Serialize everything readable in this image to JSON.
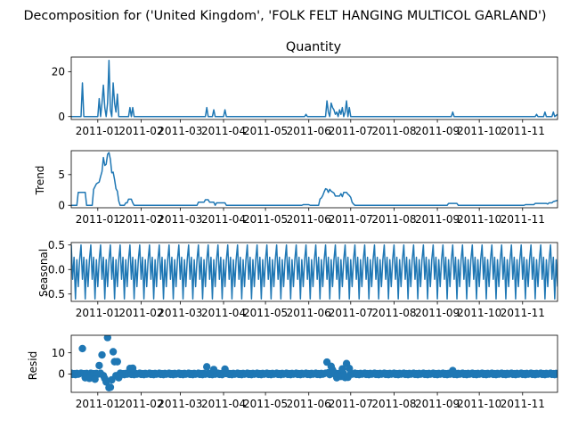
{
  "figure": {
    "suptitle": "Decomposition for ('United Kingdom', 'FOLK FELT HANGING MULTICOL GARLAND')"
  },
  "x_ticks": [
    "2011-01",
    "2011-02",
    "2011-03",
    "2011-04",
    "2011-05",
    "2011-06",
    "2011-07",
    "2011-08",
    "2011-09",
    "2011-10",
    "2011-11"
  ],
  "colors": {
    "series": "#1f77b4",
    "axis": "#000000",
    "background": "#ffffff"
  },
  "chart_data": [
    {
      "type": "line",
      "title": "Quantity",
      "ylabel": "",
      "xlim": [
        "2010-12-13",
        "2011-11-26"
      ],
      "ylim": [
        -1.3,
        26.5
      ],
      "yticks": [
        0,
        20
      ],
      "grid": false,
      "points": [
        [
          "2010-12-13",
          0
        ],
        [
          "2010-12-20",
          0
        ],
        [
          "2010-12-21",
          15
        ],
        [
          "2010-12-22",
          0
        ],
        [
          "2010-12-29",
          0
        ],
        [
          "2011-01-01",
          0
        ],
        [
          "2011-01-02",
          8
        ],
        [
          "2011-01-03",
          0
        ],
        [
          "2011-01-04",
          6
        ],
        [
          "2011-01-05",
          14
        ],
        [
          "2011-01-06",
          4
        ],
        [
          "2011-01-07",
          0
        ],
        [
          "2011-01-08",
          6
        ],
        [
          "2011-01-09",
          25
        ],
        [
          "2011-01-10",
          3
        ],
        [
          "2011-01-11",
          0
        ],
        [
          "2011-01-12",
          15
        ],
        [
          "2011-01-13",
          6
        ],
        [
          "2011-01-14",
          2
        ],
        [
          "2011-01-15",
          10
        ],
        [
          "2011-01-16",
          0
        ],
        [
          "2011-01-23",
          0
        ],
        [
          "2011-01-24",
          4
        ],
        [
          "2011-01-25",
          0
        ],
        [
          "2011-01-26",
          4
        ],
        [
          "2011-01-27",
          0
        ],
        [
          "2011-03-19",
          0
        ],
        [
          "2011-03-20",
          4
        ],
        [
          "2011-03-21",
          0
        ],
        [
          "2011-03-24",
          0
        ],
        [
          "2011-03-25",
          3
        ],
        [
          "2011-03-26",
          0
        ],
        [
          "2011-04-01",
          0
        ],
        [
          "2011-04-02",
          3
        ],
        [
          "2011-04-03",
          0
        ],
        [
          "2011-05-29",
          0
        ],
        [
          "2011-05-30",
          1
        ],
        [
          "2011-05-31",
          0
        ],
        [
          "2011-06-13",
          0
        ],
        [
          "2011-06-14",
          7
        ],
        [
          "2011-06-15",
          2
        ],
        [
          "2011-06-16",
          0
        ],
        [
          "2011-06-17",
          6
        ],
        [
          "2011-06-18",
          4
        ],
        [
          "2011-06-19",
          3
        ],
        [
          "2011-06-20",
          1
        ],
        [
          "2011-06-21",
          2
        ],
        [
          "2011-06-22",
          0
        ],
        [
          "2011-06-23",
          3
        ],
        [
          "2011-06-24",
          1
        ],
        [
          "2011-06-25",
          4
        ],
        [
          "2011-06-26",
          0
        ],
        [
          "2011-06-27",
          2
        ],
        [
          "2011-06-28",
          7
        ],
        [
          "2011-06-29",
          0
        ],
        [
          "2011-06-30",
          4
        ],
        [
          "2011-07-01",
          0
        ],
        [
          "2011-07-02",
          0
        ],
        [
          "2011-09-11",
          0
        ],
        [
          "2011-09-12",
          2
        ],
        [
          "2011-09-13",
          0
        ],
        [
          "2011-11-10",
          0
        ],
        [
          "2011-11-11",
          1
        ],
        [
          "2011-11-12",
          0
        ],
        [
          "2011-11-16",
          0
        ],
        [
          "2011-11-17",
          2
        ],
        [
          "2011-11-18",
          0
        ],
        [
          "2011-11-22",
          0
        ],
        [
          "2011-11-23",
          2
        ],
        [
          "2011-11-24",
          0
        ],
        [
          "2011-11-26",
          1
        ]
      ]
    },
    {
      "type": "line",
      "title": "",
      "ylabel": "Trend",
      "xlim": [
        "2010-12-13",
        "2011-11-26"
      ],
      "ylim": [
        -0.4,
        8.9
      ],
      "yticks": [
        0,
        5
      ],
      "grid": false,
      "points": [
        [
          "2010-12-13",
          0
        ],
        [
          "2010-12-17",
          0
        ],
        [
          "2010-12-18",
          2.1
        ],
        [
          "2010-12-23",
          2.1
        ],
        [
          "2010-12-24",
          0
        ],
        [
          "2010-12-28",
          0
        ],
        [
          "2010-12-29",
          2.6
        ],
        [
          "2010-12-31",
          3.5
        ],
        [
          "2011-01-02",
          3.8
        ],
        [
          "2011-01-03",
          4.7
        ],
        [
          "2011-01-04",
          5.5
        ],
        [
          "2011-01-05",
          7.8
        ],
        [
          "2011-01-06",
          6.5
        ],
        [
          "2011-01-07",
          6.7
        ],
        [
          "2011-01-08",
          8.3
        ],
        [
          "2011-01-09",
          8.6
        ],
        [
          "2011-01-10",
          7.5
        ],
        [
          "2011-01-11",
          5.3
        ],
        [
          "2011-01-12",
          5.4
        ],
        [
          "2011-01-13",
          4.2
        ],
        [
          "2011-01-14",
          2.7
        ],
        [
          "2011-01-15",
          2.3
        ],
        [
          "2011-01-16",
          0.7
        ],
        [
          "2011-01-17",
          0
        ],
        [
          "2011-01-20",
          0
        ],
        [
          "2011-01-21",
          0.4
        ],
        [
          "2011-01-22",
          0.4
        ],
        [
          "2011-01-23",
          1.0
        ],
        [
          "2011-01-25",
          1.0
        ],
        [
          "2011-01-26",
          0.4
        ],
        [
          "2011-01-27",
          0
        ],
        [
          "2011-03-13",
          0
        ],
        [
          "2011-03-14",
          0.5
        ],
        [
          "2011-03-18",
          0.5
        ],
        [
          "2011-03-19",
          0.9
        ],
        [
          "2011-03-21",
          0.9
        ],
        [
          "2011-03-22",
          0.5
        ],
        [
          "2011-03-25",
          0.5
        ],
        [
          "2011-03-26",
          0
        ],
        [
          "2011-03-27",
          0.4
        ],
        [
          "2011-04-02",
          0.4
        ],
        [
          "2011-04-03",
          0
        ],
        [
          "2011-05-27",
          0
        ],
        [
          "2011-05-28",
          0.1
        ],
        [
          "2011-06-01",
          0.1
        ],
        [
          "2011-06-02",
          0
        ],
        [
          "2011-06-08",
          0
        ],
        [
          "2011-06-09",
          1.0
        ],
        [
          "2011-06-10",
          1.2
        ],
        [
          "2011-06-11",
          1.6
        ],
        [
          "2011-06-12",
          2.2
        ],
        [
          "2011-06-13",
          2.7
        ],
        [
          "2011-06-14",
          2.6
        ],
        [
          "2011-06-15",
          2.1
        ],
        [
          "2011-06-16",
          2.6
        ],
        [
          "2011-06-17",
          2.3
        ],
        [
          "2011-06-19",
          2.0
        ],
        [
          "2011-06-20",
          1.5
        ],
        [
          "2011-06-23",
          1.5
        ],
        [
          "2011-06-24",
          1.9
        ],
        [
          "2011-06-25",
          1.4
        ],
        [
          "2011-06-26",
          2.1
        ],
        [
          "2011-06-28",
          2.1
        ],
        [
          "2011-06-29",
          1.8
        ],
        [
          "2011-06-30",
          1.6
        ],
        [
          "2011-07-01",
          1.3
        ],
        [
          "2011-07-02",
          0.5
        ],
        [
          "2011-07-03",
          0.2
        ],
        [
          "2011-07-04",
          0
        ],
        [
          "2011-09-08",
          0
        ],
        [
          "2011-09-09",
          0.3
        ],
        [
          "2011-09-15",
          0.3
        ],
        [
          "2011-09-16",
          0
        ],
        [
          "2011-11-02",
          0
        ],
        [
          "2011-11-03",
          0.1
        ],
        [
          "2011-11-09",
          0.1
        ],
        [
          "2011-11-10",
          0.3
        ],
        [
          "2011-11-18",
          0.3
        ],
        [
          "2011-11-19",
          0.2
        ],
        [
          "2011-11-20",
          0.4
        ],
        [
          "2011-11-22",
          0.4
        ],
        [
          "2011-11-23",
          0.6
        ],
        [
          "2011-11-26",
          0.8
        ]
      ]
    },
    {
      "type": "line",
      "title": "",
      "ylabel": "Seasonal",
      "xlim": [
        "2010-12-13",
        "2011-11-26"
      ],
      "ylim": [
        -0.65,
        0.55
      ],
      "yticks": [
        -0.5,
        0.0,
        0.5
      ],
      "grid": false,
      "period_days": 7,
      "start": "2010-12-13",
      "end": "2011-11-26",
      "weekly_pattern": [
        0.5,
        -0.2,
        0.25,
        -0.6,
        0.2,
        -0.35,
        0.2
      ]
    },
    {
      "type": "scatter",
      "title": "",
      "ylabel": "Resid",
      "xlim": [
        "2010-12-13",
        "2011-11-26"
      ],
      "ylim": [
        -8.7,
        18.3
      ],
      "yticks": [
        0,
        10
      ],
      "grid": false,
      "baseline_start": "2010-12-13",
      "baseline_end": "2011-11-26",
      "baseline_values": [
        0.4,
        -0.3,
        0.2,
        -0.4,
        0.3,
        -0.2,
        0.1
      ],
      "outliers": [
        [
          "2010-12-21",
          12
        ],
        [
          "2010-12-23",
          -1.8
        ],
        [
          "2010-12-26",
          -2.1
        ],
        [
          "2010-12-30",
          -2.5
        ],
        [
          "2011-01-02",
          4
        ],
        [
          "2011-01-04",
          9
        ],
        [
          "2011-01-05",
          -0.8
        ],
        [
          "2011-01-06",
          -2.2
        ],
        [
          "2011-01-07",
          -3.8
        ],
        [
          "2011-01-08",
          17.2
        ],
        [
          "2011-01-09",
          -6.5
        ],
        [
          "2011-01-10",
          -6.3
        ],
        [
          "2011-01-11",
          -2.8
        ],
        [
          "2011-01-12",
          10.5
        ],
        [
          "2011-01-13",
          5.8
        ],
        [
          "2011-01-14",
          -0.8
        ],
        [
          "2011-01-15",
          5.8
        ],
        [
          "2011-01-16",
          -1.8
        ],
        [
          "2011-01-24",
          2.6
        ],
        [
          "2011-01-26",
          2.7
        ],
        [
          "2011-03-20",
          3.4
        ],
        [
          "2011-03-25",
          2.1
        ],
        [
          "2011-04-02",
          2.3
        ],
        [
          "2011-06-14",
          5.6
        ],
        [
          "2011-06-15",
          0.6
        ],
        [
          "2011-06-17",
          3.6
        ],
        [
          "2011-06-18",
          1.9
        ],
        [
          "2011-06-21",
          -1.8
        ],
        [
          "2011-06-24",
          -1.2
        ],
        [
          "2011-06-25",
          2.4
        ],
        [
          "2011-06-27",
          -1.7
        ],
        [
          "2011-06-28",
          4.9
        ],
        [
          "2011-06-29",
          -1.6
        ],
        [
          "2011-06-30",
          2.6
        ],
        [
          "2011-09-12",
          1.6
        ]
      ]
    }
  ]
}
